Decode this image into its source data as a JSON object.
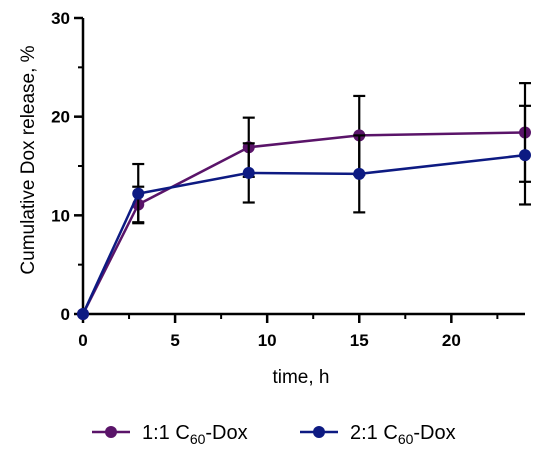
{
  "chart_data": {
    "type": "line",
    "title": "",
    "xlabel": "time, h",
    "ylabel": "Cumulative Dox release, %",
    "xlim": [
      0,
      24
    ],
    "ylim": [
      0,
      30
    ],
    "xticks": [
      0,
      5,
      10,
      15,
      20
    ],
    "yticks": [
      0,
      10,
      20,
      30
    ],
    "xtick_labels": [
      "0",
      "5",
      "10",
      "15",
      "20"
    ],
    "ytick_labels": [
      "0",
      "10",
      "20",
      "30"
    ],
    "grid": false,
    "legend_position": "bottom",
    "series": [
      {
        "name": "1:1 C60-Dox",
        "legend": {
          "pre": "1:1 C",
          "sub": "60",
          "post": "-Dox"
        },
        "color": "#5a1469",
        "x": [
          0,
          3,
          9,
          15,
          24
        ],
        "y": [
          0,
          11.1,
          16.9,
          18.1,
          18.4
        ],
        "error": [
          0,
          1.8,
          3.0,
          4.0,
          5.0
        ]
      },
      {
        "name": "2:1 C60-Dox",
        "legend": {
          "pre": "2:1 C",
          "sub": "60",
          "post": "-Dox"
        },
        "color": "#0d1a82",
        "x": [
          0,
          3,
          9,
          15,
          24
        ],
        "y": [
          0,
          12.2,
          14.3,
          14.2,
          16.1
        ],
        "error": [
          0,
          3.0,
          3.0,
          3.9,
          5.0
        ]
      }
    ]
  }
}
